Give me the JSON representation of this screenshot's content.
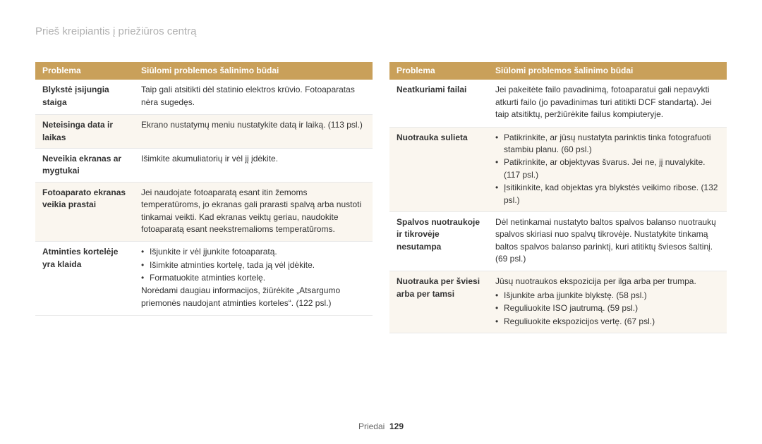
{
  "page_title": "Prieš kreipiantis į priežiūros centrą",
  "header_problem": "Problema",
  "header_solution": "Siūlomi problemos šalinimo būdai",
  "footer_label": "Priedai",
  "footer_page": "129",
  "colors": {
    "header_bg": "#c9a05a",
    "header_text": "#ffffff",
    "alt_row_bg": "#faf6ef",
    "border": "#e8e8e8",
    "title_color": "#b0b0b0",
    "body_text": "#333333"
  },
  "left_rows": [
    {
      "problem": "Blykstė įsijungia staiga",
      "solution_text": "Taip gali atsitikti dėl statinio elektros krūvio. Fotoaparatas nėra sugedęs."
    },
    {
      "problem": "Neteisinga data ir laikas",
      "solution_text": "Ekrano nustatymų meniu nustatykite datą ir laiką. (113 psl.)"
    },
    {
      "problem": "Neveikia ekranas ar mygtukai",
      "solution_text": "Išimkite akumuliatorių ir vėl jį įdėkite."
    },
    {
      "problem": "Fotoaparato ekranas veikia prastai",
      "solution_text": "Jei naudojate fotoaparatą esant itin žemoms temperatūroms, jo ekranas gali prarasti spalvą arba nustoti tinkamai veikti. Kad ekranas veiktų geriau, naudokite fotoaparatą esant neekstremalioms temperatūroms."
    },
    {
      "problem": "Atminties kortelėje yra klaida",
      "solution_bullets": [
        "Išjunkite ir vėl įjunkite fotoaparatą.",
        "Išimkite atminties kortelę, tada ją vėl įdėkite.",
        "Formatuokite atminties kortelę."
      ],
      "solution_after": "Norėdami daugiau informacijos, žiūrėkite „Atsargumo priemonės naudojant atminties korteles“. (122 psl.)"
    }
  ],
  "right_rows": [
    {
      "problem": "Neatkuriami failai",
      "solution_text": "Jei pakeitėte failo pavadinimą, fotoaparatui gali nepavykti atkurti failo (jo pavadinimas turi atitikti DCF standartą). Jei taip atsitiktų, peržiūrėkite failus kompiuteryje."
    },
    {
      "problem": "Nuotrauka sulieta",
      "solution_bullets": [
        "Patikrinkite, ar jūsų nustatyta parinktis tinka fotografuoti stambiu planu. (60 psl.)",
        "Patikrinkite, ar objektyvas švarus. Jei ne, jį nuvalykite. (117 psl.)",
        "Įsitikinkite, kad objektas yra blykstės veikimo ribose. (132 psl.)"
      ]
    },
    {
      "problem": "Spalvos nuotraukoje ir tikrovėje nesutampa",
      "solution_text": "Dėl netinkamai nustatyto baltos spalvos balanso nuotraukų spalvos skiriasi nuo spalvų tikrovėje. Nustatykite tinkamą baltos spalvos balanso parinktį, kuri atitiktų šviesos šaltinį. (69 psl.)"
    },
    {
      "problem": "Nuotrauka per šviesi arba per tamsi",
      "solution_before": "Jūsų nuotraukos ekspozicija per ilga arba per trumpa.",
      "solution_bullets": [
        "Išjunkite arba įjunkite blykstę. (58 psl.)",
        "Reguliuokite ISO jautrumą. (59 psl.)",
        "Reguliuokite ekspozicijos vertę. (67 psl.)"
      ]
    }
  ]
}
